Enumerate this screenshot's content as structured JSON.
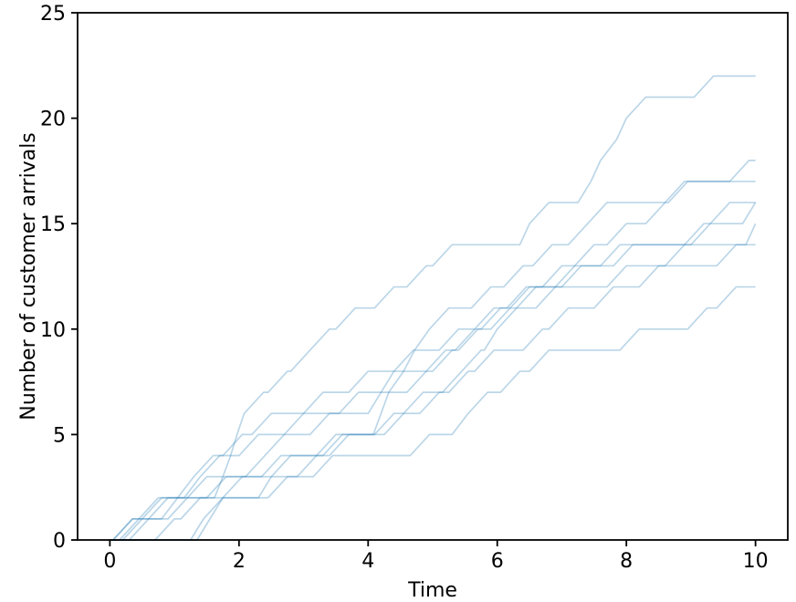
{
  "chart_data": {
    "type": "line",
    "subtype": "poisson-process-sample-paths",
    "title": "",
    "xlabel": "Time",
    "ylabel": "Number of customer arrivals",
    "xlim": [
      -0.5,
      10.5
    ],
    "ylim": [
      0,
      25
    ],
    "xticks": [
      0,
      2,
      4,
      6,
      8,
      10
    ],
    "yticks": [
      0,
      5,
      10,
      15,
      20,
      25
    ],
    "grid": false,
    "legend": null,
    "line_color": "#1f77b4",
    "line_opacity": 0.3,
    "line_width": 1.7,
    "t_start": 0,
    "t_end": 10,
    "rise_width": 0.3,
    "series": [
      {
        "final_count": 22,
        "arrival_times": [
          0.05,
          0.45,
          1.62,
          1.75,
          1.87,
          1.97,
          2.08,
          2.45,
          2.8,
          3.1,
          3.5,
          4.1,
          4.6,
          5.0,
          6.35,
          6.5,
          7.25,
          7.45,
          7.6,
          7.85,
          8.0,
          9.05
        ]
      },
      {
        "final_count": 18,
        "arrival_times": [
          0.3,
          0.9,
          2.3,
          2.5,
          3.3,
          4.08,
          4.2,
          4.32,
          4.55,
          4.72,
          4.95,
          5.6,
          6.1,
          6.55,
          7.1,
          7.4,
          8.65,
          9.6
        ]
      },
      {
        "final_count": 17,
        "arrival_times": [
          0.05,
          0.5,
          1.15,
          1.4,
          1.75,
          2.2,
          4.0,
          4.2,
          4.4,
          5.1,
          5.65,
          6.2,
          6.9,
          7.2,
          7.7,
          8.3,
          8.6
        ]
      },
      {
        "final_count": 16,
        "arrival_times": [
          0.15,
          0.6,
          1.2,
          2.1,
          2.4,
          3.1,
          3.55,
          4.6,
          5.0,
          5.4,
          5.9,
          6.3,
          6.7,
          7.8,
          8.9,
          9.3
        ]
      },
      {
        "final_count": 16,
        "arrival_times": [
          0.7,
          1.1,
          1.5,
          2.9,
          3.2,
          4.1,
          4.8,
          5.15,
          5.45,
          5.8,
          6.0,
          6.6,
          7.0,
          7.6,
          9.0,
          9.8
        ]
      },
      {
        "final_count": 15,
        "arrival_times": [
          1.35,
          1.55,
          1.75,
          2.35,
          3.4,
          4.25,
          4.55,
          5.25,
          5.65,
          6.4,
          6.8,
          7.5,
          8.2,
          8.6,
          9.85
        ]
      },
      {
        "final_count": 14,
        "arrival_times": [
          0.2,
          0.8,
          1.05,
          1.3,
          2.0,
          2.7,
          3.0,
          3.7,
          4.9,
          5.35,
          5.75,
          6.15,
          7.7,
          9.4
        ]
      },
      {
        "final_count": 12,
        "arrival_times": [
          1.25,
          1.45,
          2.45,
          3.15,
          4.65,
          5.3,
          5.55,
          6.05,
          6.5,
          7.9,
          8.95,
          9.4
        ]
      }
    ],
    "colors": {
      "line": "#1f77b4",
      "spine": "#000000",
      "text": "#000000",
      "background": "#ffffff"
    }
  }
}
